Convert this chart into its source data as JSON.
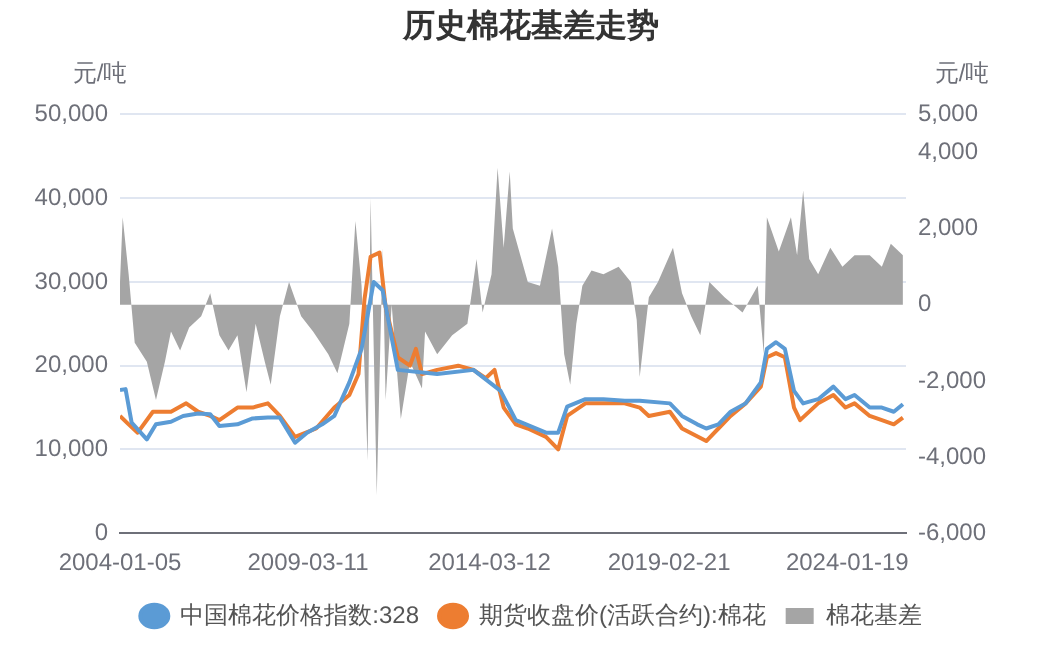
{
  "chart_data": {
    "type": "line",
    "title": "历史棉花基差走势",
    "ylabel": "元/吨",
    "y2label": "元/吨",
    "xlim": [
      "2004-01-05",
      "2025-09-01"
    ],
    "xticks": [
      "2004-01-05",
      "2009-03-11",
      "2014-03-12",
      "2019-02-21",
      "2024-01-19"
    ],
    "ylim": [
      0,
      50000
    ],
    "yticks": [
      0,
      {
        "value": 10000,
        "label": "10,000"
      },
      {
        "value": 20000,
        "label": "20,000"
      },
      {
        "value": 30000,
        "label": "30,000"
      },
      {
        "value": 40000,
        "label": "40,000"
      },
      {
        "value": 50000,
        "label": "50,000"
      }
    ],
    "y2lim": [
      -6000,
      5000
    ],
    "y2ticks": [
      {
        "value": -6000,
        "label": "-6,000"
      },
      {
        "value": -4000,
        "label": "-4,000"
      },
      {
        "value": -2000,
        "label": "-2,000"
      },
      0,
      {
        "value": 2000,
        "label": "2,000"
      },
      {
        "value": 4000,
        "label": "4,000"
      },
      {
        "value": 5000,
        "label": "5,000"
      }
    ],
    "grid": "y",
    "legend": "bottom",
    "series": [
      {
        "name": "棉花基差",
        "type": "area",
        "axis": "y2",
        "color": "#a5a5a5",
        "x": [
          "2004-01-05",
          "2004-02",
          "2004-04",
          "2004-06",
          "2004-10",
          "2005-01",
          "2005-04",
          "2005-06",
          "2005-09",
          "2005-12",
          "2006-04",
          "2006-07",
          "2006-10",
          "2007-01",
          "2007-04",
          "2007-07",
          "2007-10",
          "2008-01",
          "2008-03",
          "2008-06",
          "2008-09",
          "2009-01",
          "2009-05",
          "2009-10",
          "2010-01",
          "2010-05",
          "2010-07",
          "2010-09",
          "2010-11",
          "2010-12",
          "2011-02",
          "2011-04",
          "2011-05",
          "2011-07",
          "2011-10",
          "2012-01",
          "2012-05",
          "2012-06",
          "2012-10",
          "2013-03",
          "2013-08",
          "2013-11",
          "2014-01",
          "2014-04",
          "2014-06",
          "2014-08",
          "2014-10",
          "2014-11",
          "2015-04",
          "2015-08",
          "2015-12",
          "2016-02",
          "2016-04",
          "2016-06",
          "2016-08",
          "2016-10",
          "2017-01",
          "2017-05",
          "2017-10",
          "2018-02",
          "2018-04",
          "2018-05",
          "2018-08",
          "2018-11",
          "2019-04",
          "2019-07",
          "2019-10",
          "2020-01",
          "2020-04",
          "2020-09",
          "2021-03",
          "2021-08",
          "2021-10",
          "2021-11",
          "2022-03",
          "2022-07",
          "2022-09",
          "2022-11",
          "2023-01",
          "2023-04",
          "2023-08",
          "2023-12",
          "2024-04",
          "2024-09",
          "2025-01",
          "2025-04",
          "2025-08"
        ],
        "values": [
          600,
          2300,
          800,
          -1000,
          -1500,
          -2500,
          -1500,
          -700,
          -1200,
          -600,
          -300,
          300,
          -800,
          -1200,
          -800,
          -2300,
          -500,
          -1500,
          -2100,
          -300,
          600,
          -300,
          -700,
          -1300,
          -1800,
          -500,
          2200,
          500,
          -4100,
          2800,
          -5000,
          1500,
          -2500,
          0,
          -3000,
          -1500,
          -2200,
          -700,
          -1300,
          -800,
          -500,
          1200,
          -200,
          800,
          3600,
          1500,
          3500,
          2000,
          600,
          500,
          2000,
          1000,
          -1300,
          -2100,
          -500,
          500,
          900,
          800,
          1000,
          600,
          -400,
          -1900,
          200,
          600,
          1500,
          300,
          -300,
          -800,
          600,
          200,
          -200,
          500,
          -1300,
          2300,
          1400,
          2300,
          1300,
          3000,
          1200,
          800,
          1500,
          1000,
          1300,
          1300,
          1000,
          1600,
          1300
        ]
      },
      {
        "name": "中国棉花价格指数:328",
        "type": "line",
        "color": "#5b9bd5",
        "x": [
          "2004-01-05",
          "2004-03",
          "2004-05",
          "2004-10",
          "2005-01",
          "2005-06",
          "2005-10",
          "2006-03",
          "2006-07",
          "2006-10",
          "2007-04",
          "2007-09",
          "2008-02",
          "2008-06",
          "2008-11",
          "2009-03",
          "2009-08",
          "2009-12",
          "2010-05",
          "2010-09",
          "2011-01",
          "2011-04",
          "2011-09",
          "2012-10",
          "2013-10",
          "2014-07",
          "2014-12",
          "2015-10",
          "2016-02",
          "2016-05",
          "2016-11",
          "2017-05",
          "2017-12",
          "2018-05",
          "2019-03",
          "2019-07",
          "2019-12",
          "2020-03",
          "2020-07",
          "2020-11",
          "2021-04",
          "2021-09",
          "2021-11",
          "2022-02",
          "2022-05",
          "2022-08",
          "2022-11",
          "2023-04",
          "2023-09",
          "2024-01",
          "2024-04",
          "2024-09",
          "2025-01",
          "2025-05",
          "2025-08"
        ],
        "values": [
          17100,
          17200,
          13200,
          11200,
          13000,
          13300,
          14000,
          14300,
          14200,
          12800,
          13000,
          13700,
          13800,
          13800,
          10800,
          12000,
          13000,
          14000,
          18000,
          22000,
          30000,
          29000,
          19500,
          19000,
          19500,
          17000,
          13500,
          12000,
          12000,
          15100,
          16000,
          16000,
          15800,
          15800,
          15500,
          14000,
          13000,
          12500,
          13000,
          14500,
          15500,
          18000,
          22000,
          22800,
          22000,
          17000,
          15500,
          16000,
          17500,
          16000,
          16500,
          15000,
          15000,
          14500,
          15400
        ]
      },
      {
        "name": "期货收盘价(活跃合约):棉花",
        "type": "line",
        "color": "#ed7d31",
        "x": [
          "2004-01-05",
          "2004-04",
          "2004-07",
          "2004-12",
          "2005-06",
          "2005-11",
          "2006-03",
          "2006-07",
          "2006-10",
          "2007-04",
          "2007-09",
          "2008-02",
          "2008-06",
          "2008-11",
          "2009-06",
          "2009-12",
          "2010-05",
          "2010-08",
          "2010-10",
          "2010-12",
          "2011-03",
          "2011-05",
          "2011-09",
          "2012-01",
          "2012-03",
          "2012-05",
          "2012-10",
          "2013-05",
          "2013-10",
          "2014-02",
          "2014-05",
          "2014-08",
          "2014-12",
          "2015-04",
          "2015-10",
          "2016-02",
          "2016-05",
          "2016-11",
          "2017-05",
          "2017-12",
          "2018-05",
          "2018-08",
          "2019-03",
          "2019-07",
          "2020-03",
          "2020-07",
          "2020-11",
          "2021-04",
          "2021-09",
          "2021-11",
          "2022-02",
          "2022-05",
          "2022-08",
          "2022-10",
          "2023-04",
          "2023-09",
          "2024-01",
          "2024-04",
          "2024-09",
          "2025-01",
          "2025-05",
          "2025-08"
        ],
        "values": [
          14000,
          13000,
          12000,
          14500,
          14500,
          15500,
          14500,
          14000,
          13500,
          15000,
          15000,
          15500,
          14000,
          11500,
          12500,
          15000,
          16500,
          19000,
          28000,
          33000,
          33500,
          27000,
          21000,
          20000,
          22000,
          19000,
          19500,
          20000,
          19500,
          18500,
          19500,
          15000,
          13000,
          12500,
          11500,
          10000,
          14000,
          15500,
          15500,
          15500,
          15000,
          14000,
          14500,
          12500,
          11000,
          12500,
          14000,
          15500,
          17500,
          21000,
          21500,
          21000,
          15000,
          13500,
          15500,
          16500,
          15000,
          15500,
          14000,
          13500,
          13000,
          13800
        ]
      }
    ]
  }
}
